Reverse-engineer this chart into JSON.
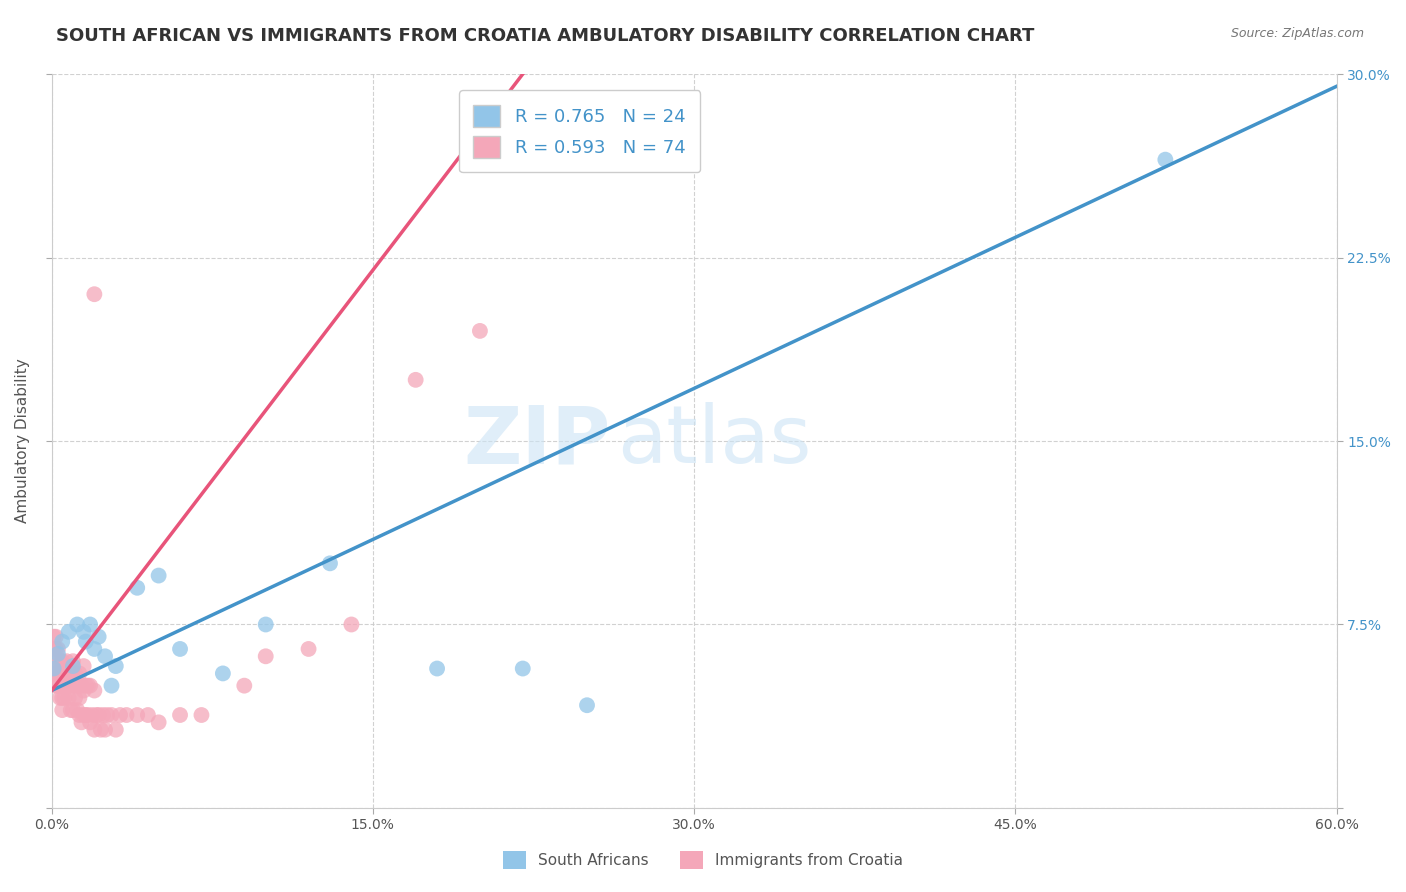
{
  "title": "SOUTH AFRICAN VS IMMIGRANTS FROM CROATIA AMBULATORY DISABILITY CORRELATION CHART",
  "source": "Source: ZipAtlas.com",
  "xlabel_label": "South Africans",
  "ylabel_label": "Ambulatory Disability",
  "xlabel2_label": "Immigrants from Croatia",
  "xlim": [
    0.0,
    0.6
  ],
  "ylim": [
    0.0,
    0.3
  ],
  "xticks": [
    0.0,
    0.15,
    0.3,
    0.45,
    0.6
  ],
  "yticks": [
    0.0,
    0.075,
    0.15,
    0.225,
    0.3
  ],
  "xtick_labels": [
    "0.0%",
    "15.0%",
    "30.0%",
    "45.0%",
    "60.0%"
  ],
  "ytick_labels_right": [
    "",
    "7.5%",
    "15.0%",
    "22.5%",
    "30.0%"
  ],
  "blue_R": 0.765,
  "blue_N": 24,
  "pink_R": 0.593,
  "pink_N": 74,
  "blue_color": "#92c5e8",
  "pink_color": "#f4a7b9",
  "blue_line_color": "#4393c9",
  "pink_line_color": "#e8547a",
  "watermark_zip": "ZIP",
  "watermark_atlas": "atlas",
  "blue_line_x": [
    0.0,
    0.6
  ],
  "blue_line_y": [
    0.048,
    0.295
  ],
  "pink_line_x": [
    0.0,
    0.22
  ],
  "pink_line_y": [
    0.048,
    0.3
  ],
  "blue_scatter_x": [
    0.001,
    0.003,
    0.005,
    0.008,
    0.01,
    0.012,
    0.015,
    0.016,
    0.018,
    0.02,
    0.022,
    0.025,
    0.028,
    0.03,
    0.04,
    0.05,
    0.06,
    0.08,
    0.1,
    0.13,
    0.18,
    0.22,
    0.25,
    0.52
  ],
  "blue_scatter_y": [
    0.057,
    0.063,
    0.068,
    0.072,
    0.058,
    0.075,
    0.072,
    0.068,
    0.075,
    0.065,
    0.07,
    0.062,
    0.05,
    0.058,
    0.09,
    0.095,
    0.065,
    0.055,
    0.075,
    0.1,
    0.057,
    0.057,
    0.042,
    0.265
  ],
  "pink_scatter_x": [
    0.001,
    0.001,
    0.001,
    0.001,
    0.002,
    0.002,
    0.002,
    0.002,
    0.003,
    0.003,
    0.003,
    0.004,
    0.004,
    0.005,
    0.005,
    0.005,
    0.005,
    0.006,
    0.006,
    0.007,
    0.007,
    0.007,
    0.008,
    0.008,
    0.008,
    0.009,
    0.009,
    0.01,
    0.01,
    0.01,
    0.01,
    0.011,
    0.011,
    0.012,
    0.012,
    0.013,
    0.013,
    0.013,
    0.014,
    0.014,
    0.015,
    0.015,
    0.015,
    0.016,
    0.016,
    0.017,
    0.017,
    0.018,
    0.018,
    0.019,
    0.02,
    0.02,
    0.021,
    0.022,
    0.023,
    0.024,
    0.025,
    0.026,
    0.028,
    0.03,
    0.032,
    0.035,
    0.04,
    0.045,
    0.05,
    0.06,
    0.07,
    0.09,
    0.1,
    0.12,
    0.14,
    0.17,
    0.2,
    0.02
  ],
  "pink_scatter_y": [
    0.055,
    0.06,
    0.065,
    0.07,
    0.05,
    0.055,
    0.065,
    0.07,
    0.05,
    0.055,
    0.065,
    0.045,
    0.06,
    0.04,
    0.05,
    0.06,
    0.045,
    0.045,
    0.055,
    0.05,
    0.055,
    0.06,
    0.045,
    0.05,
    0.058,
    0.04,
    0.055,
    0.04,
    0.05,
    0.055,
    0.06,
    0.045,
    0.055,
    0.04,
    0.05,
    0.038,
    0.045,
    0.055,
    0.035,
    0.05,
    0.038,
    0.048,
    0.058,
    0.038,
    0.05,
    0.038,
    0.05,
    0.035,
    0.05,
    0.038,
    0.032,
    0.048,
    0.038,
    0.038,
    0.032,
    0.038,
    0.032,
    0.038,
    0.038,
    0.032,
    0.038,
    0.038,
    0.038,
    0.038,
    0.035,
    0.038,
    0.038,
    0.05,
    0.062,
    0.065,
    0.075,
    0.175,
    0.195,
    0.21
  ],
  "title_fontsize": 13,
  "axis_label_fontsize": 11,
  "tick_fontsize": 10,
  "legend_fontsize": 13
}
